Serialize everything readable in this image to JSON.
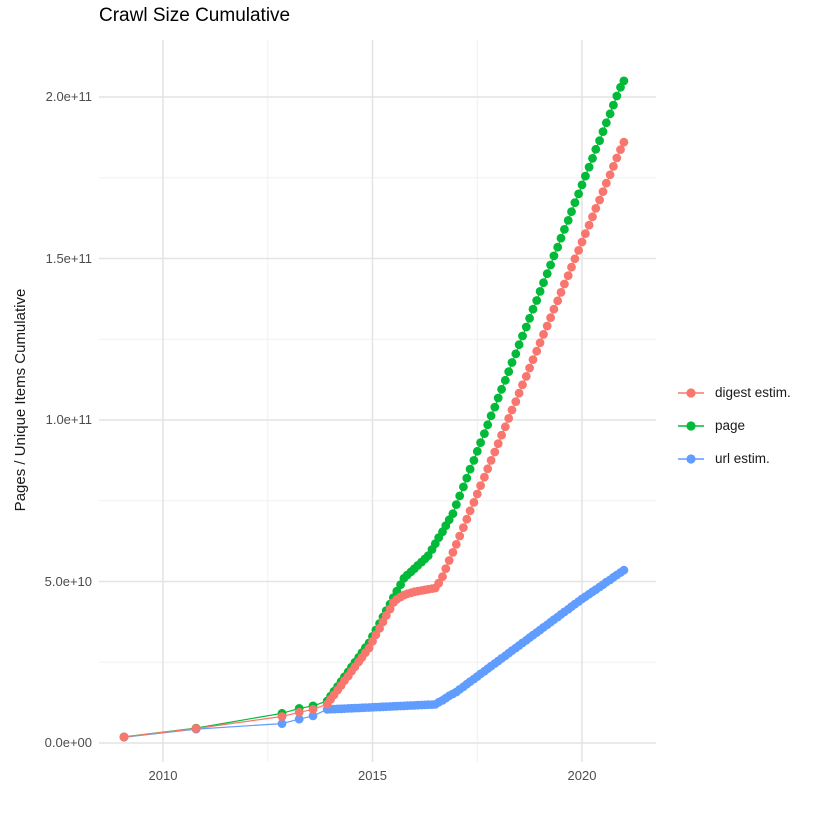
{
  "title": "Crawl Size Cumulative",
  "colors": {
    "background": "#ffffff",
    "grid_major": "#e4e4e4",
    "grid_minor": "#f0f0f0",
    "tick_label": "#4d4d4d",
    "text": "#000000",
    "digest_estim": "#F8766D",
    "page": "#00BA38",
    "url_estim": "#619CFF"
  },
  "chart_data": {
    "type": "line",
    "markers": true,
    "title": "Crawl Size Cumulative",
    "xlabel": "",
    "ylabel": "Pages / Unique Items Cumulative",
    "legend_position": "right",
    "grid": "major and minor, light gray on white",
    "value_unit": "values stored in billions (1e9); axis shows scientific notation",
    "x_range": [
      2008.5,
      2021.7
    ],
    "y_range_e9": [
      -6,
      217
    ],
    "x_ticks": [
      2010,
      2015,
      2020
    ],
    "x_tick_labels": [
      "2010",
      "2015",
      "2020"
    ],
    "x_minor_ticks": [
      2012.5,
      2017.5
    ],
    "y_tick_values_e9": [
      0,
      50,
      100,
      150,
      200
    ],
    "y_tick_labels": [
      "0.0e+00",
      "5.0e+10",
      "1.0e+11",
      "1.5e+11",
      "2.0e+11"
    ],
    "y_minor_tick_values_e9": [
      25,
      75,
      125,
      175
    ],
    "series": [
      {
        "name": "digest estim.",
        "color": "#F8766D",
        "points": [
          [
            2009.07,
            1.9
          ],
          [
            2010.79,
            4.5
          ],
          [
            2012.84,
            8.2
          ],
          [
            2013.25,
            9.5
          ],
          [
            2013.58,
            10.4
          ],
          [
            2013.92,
            12
          ],
          [
            2014,
            13.5
          ],
          [
            2014.08,
            14.9
          ],
          [
            2014.17,
            16.4
          ],
          [
            2014.25,
            17.8
          ],
          [
            2014.33,
            19.3
          ],
          [
            2014.42,
            20.7
          ],
          [
            2014.5,
            22.2
          ],
          [
            2014.58,
            23.6
          ],
          [
            2014.67,
            25.1
          ],
          [
            2014.75,
            26.5
          ],
          [
            2014.83,
            28
          ],
          [
            2014.92,
            29.4
          ],
          [
            2015,
            31.5
          ],
          [
            2015.08,
            33.5
          ],
          [
            2015.17,
            35.5
          ],
          [
            2015.25,
            37.5
          ],
          [
            2015.33,
            39.5
          ],
          [
            2015.42,
            41.5
          ],
          [
            2015.5,
            43.5
          ],
          [
            2015.58,
            44.5
          ],
          [
            2015.67,
            45.2
          ],
          [
            2015.75,
            45.8
          ],
          [
            2015.83,
            46.2
          ],
          [
            2015.92,
            46.5
          ],
          [
            2016,
            46.8
          ],
          [
            2016.08,
            47
          ],
          [
            2016.17,
            47.2
          ],
          [
            2016.25,
            47.4
          ],
          [
            2016.33,
            47.6
          ],
          [
            2016.42,
            47.8
          ],
          [
            2016.5,
            48
          ],
          [
            2016.58,
            49.5
          ],
          [
            2016.67,
            51.5
          ],
          [
            2016.75,
            54
          ],
          [
            2016.83,
            56.5
          ],
          [
            2016.92,
            59
          ],
          [
            2017,
            61.5
          ],
          [
            2017.08,
            64.1
          ],
          [
            2017.17,
            66.7
          ],
          [
            2017.25,
            69.3
          ],
          [
            2017.33,
            71.9
          ],
          [
            2017.42,
            74.5
          ],
          [
            2017.5,
            77.1
          ],
          [
            2017.58,
            79.7
          ],
          [
            2017.67,
            82.3
          ],
          [
            2017.75,
            84.9
          ],
          [
            2017.83,
            87.5
          ],
          [
            2017.92,
            90.1
          ],
          [
            2018,
            92.7
          ],
          [
            2018.08,
            95.3
          ],
          [
            2018.17,
            97.9
          ],
          [
            2018.25,
            100.5
          ],
          [
            2018.33,
            103.1
          ],
          [
            2018.42,
            105.7
          ],
          [
            2018.5,
            108.3
          ],
          [
            2018.58,
            110.9
          ],
          [
            2018.67,
            113.5
          ],
          [
            2018.75,
            116.1
          ],
          [
            2018.83,
            118.7
          ],
          [
            2018.92,
            121.3
          ],
          [
            2019,
            123.9
          ],
          [
            2019.08,
            126.5
          ],
          [
            2019.17,
            129.1
          ],
          [
            2019.25,
            131.7
          ],
          [
            2019.33,
            134.3
          ],
          [
            2019.42,
            136.9
          ],
          [
            2019.5,
            139.5
          ],
          [
            2019.58,
            142.1
          ],
          [
            2019.67,
            144.7
          ],
          [
            2019.75,
            147.3
          ],
          [
            2019.83,
            149.9
          ],
          [
            2019.92,
            152.5
          ],
          [
            2020,
            155.1
          ],
          [
            2020.08,
            157.7
          ],
          [
            2020.17,
            160.3
          ],
          [
            2020.25,
            162.9
          ],
          [
            2020.33,
            165.5
          ],
          [
            2020.42,
            168.1
          ],
          [
            2020.5,
            170.7
          ],
          [
            2020.58,
            173.3
          ],
          [
            2020.67,
            175.9
          ],
          [
            2020.75,
            178.5
          ],
          [
            2020.83,
            181.1
          ],
          [
            2020.92,
            183.7
          ],
          [
            2021,
            186
          ]
        ]
      },
      {
        "name": "page",
        "color": "#00BA38",
        "points": [
          [
            2009.07,
            1.9
          ],
          [
            2010.79,
            4.6
          ],
          [
            2012.84,
            9.2
          ],
          [
            2013.25,
            10.7
          ],
          [
            2013.58,
            11.5
          ],
          [
            2013.92,
            13
          ],
          [
            2014,
            14.5
          ],
          [
            2014.08,
            16
          ],
          [
            2014.17,
            17.5
          ],
          [
            2014.25,
            19
          ],
          [
            2014.33,
            20.5
          ],
          [
            2014.42,
            22
          ],
          [
            2014.5,
            23.5
          ],
          [
            2014.58,
            25
          ],
          [
            2014.67,
            26.5
          ],
          [
            2014.75,
            28
          ],
          [
            2014.83,
            29.5
          ],
          [
            2014.92,
            31
          ],
          [
            2015,
            33
          ],
          [
            2015.08,
            35
          ],
          [
            2015.17,
            37
          ],
          [
            2015.25,
            39
          ],
          [
            2015.33,
            41
          ],
          [
            2015.42,
            43
          ],
          [
            2015.5,
            45
          ],
          [
            2015.58,
            47
          ],
          [
            2015.67,
            49
          ],
          [
            2015.75,
            51
          ],
          [
            2015.83,
            52
          ],
          [
            2015.92,
            53
          ],
          [
            2016,
            54
          ],
          [
            2016.08,
            55
          ],
          [
            2016.17,
            56
          ],
          [
            2016.25,
            57
          ],
          [
            2016.33,
            58
          ],
          [
            2016.42,
            59.9
          ],
          [
            2016.5,
            61.7
          ],
          [
            2016.58,
            63.6
          ],
          [
            2016.67,
            65.4
          ],
          [
            2016.75,
            67.3
          ],
          [
            2016.83,
            69.1
          ],
          [
            2016.92,
            71
          ],
          [
            2017,
            73.8
          ],
          [
            2017.08,
            76.5
          ],
          [
            2017.17,
            79.3
          ],
          [
            2017.25,
            82
          ],
          [
            2017.33,
            84.8
          ],
          [
            2017.42,
            87.5
          ],
          [
            2017.5,
            90.3
          ],
          [
            2017.58,
            93
          ],
          [
            2017.67,
            95.8
          ],
          [
            2017.75,
            98.5
          ],
          [
            2017.83,
            101.3
          ],
          [
            2017.92,
            104
          ],
          [
            2018,
            106.8
          ],
          [
            2018.08,
            109.5
          ],
          [
            2018.17,
            112.3
          ],
          [
            2018.25,
            115
          ],
          [
            2018.33,
            117.8
          ],
          [
            2018.42,
            120.5
          ],
          [
            2018.5,
            123.3
          ],
          [
            2018.58,
            126
          ],
          [
            2018.67,
            128.8
          ],
          [
            2018.75,
            131.5
          ],
          [
            2018.83,
            134.3
          ],
          [
            2018.92,
            137
          ],
          [
            2019,
            139.8
          ],
          [
            2019.08,
            142.5
          ],
          [
            2019.17,
            145.3
          ],
          [
            2019.25,
            148
          ],
          [
            2019.33,
            150.8
          ],
          [
            2019.42,
            153.5
          ],
          [
            2019.5,
            156.3
          ],
          [
            2019.58,
            159
          ],
          [
            2019.67,
            161.8
          ],
          [
            2019.75,
            164.5
          ],
          [
            2019.83,
            167.3
          ],
          [
            2019.92,
            170
          ],
          [
            2020,
            172.8
          ],
          [
            2020.08,
            175.5
          ],
          [
            2020.17,
            178.3
          ],
          [
            2020.25,
            181
          ],
          [
            2020.33,
            183.8
          ],
          [
            2020.42,
            186.5
          ],
          [
            2020.5,
            189.3
          ],
          [
            2020.58,
            192
          ],
          [
            2020.67,
            194.8
          ],
          [
            2020.75,
            197.5
          ],
          [
            2020.83,
            200.3
          ],
          [
            2020.92,
            203
          ],
          [
            2021,
            205
          ]
        ]
      },
      {
        "name": "url estim.",
        "color": "#619CFF",
        "points": [
          [
            2009.07,
            1.8
          ],
          [
            2010.79,
            4.3
          ],
          [
            2012.84,
            6
          ],
          [
            2013.25,
            7.4
          ],
          [
            2013.58,
            8.4
          ],
          [
            2013.92,
            10.4
          ],
          [
            2014,
            10.45
          ],
          [
            2014.08,
            10.5
          ],
          [
            2014.17,
            10.55
          ],
          [
            2014.25,
            10.6
          ],
          [
            2014.33,
            10.65
          ],
          [
            2014.42,
            10.7
          ],
          [
            2014.5,
            10.75
          ],
          [
            2014.58,
            10.8
          ],
          [
            2014.67,
            10.85
          ],
          [
            2014.75,
            10.9
          ],
          [
            2014.83,
            10.95
          ],
          [
            2014.92,
            11
          ],
          [
            2015,
            11.05
          ],
          [
            2015.08,
            11.1
          ],
          [
            2015.17,
            11.15
          ],
          [
            2015.25,
            11.2
          ],
          [
            2015.33,
            11.25
          ],
          [
            2015.42,
            11.3
          ],
          [
            2015.5,
            11.35
          ],
          [
            2015.58,
            11.4
          ],
          [
            2015.67,
            11.45
          ],
          [
            2015.75,
            11.5
          ],
          [
            2015.83,
            11.55
          ],
          [
            2015.92,
            11.6
          ],
          [
            2016,
            11.65
          ],
          [
            2016.08,
            11.7
          ],
          [
            2016.17,
            11.75
          ],
          [
            2016.25,
            11.8
          ],
          [
            2016.33,
            11.85
          ],
          [
            2016.42,
            11.9
          ],
          [
            2016.5,
            11.95
          ],
          [
            2016.58,
            12.6
          ],
          [
            2016.67,
            13.2
          ],
          [
            2016.75,
            13.9
          ],
          [
            2016.83,
            14.6
          ],
          [
            2016.92,
            15.2
          ],
          [
            2017,
            15.8
          ],
          [
            2017.08,
            16.6
          ],
          [
            2017.17,
            17.4
          ],
          [
            2017.25,
            18.2
          ],
          [
            2017.33,
            19
          ],
          [
            2017.42,
            19.8
          ],
          [
            2017.5,
            20.6
          ],
          [
            2017.58,
            21.4
          ],
          [
            2017.67,
            22.2
          ],
          [
            2017.75,
            23
          ],
          [
            2017.83,
            23.8
          ],
          [
            2017.92,
            24.6
          ],
          [
            2018,
            25.4
          ],
          [
            2018.08,
            26.2
          ],
          [
            2018.17,
            27
          ],
          [
            2018.25,
            27.8
          ],
          [
            2018.33,
            28.6
          ],
          [
            2018.42,
            29.4
          ],
          [
            2018.5,
            30.2
          ],
          [
            2018.58,
            31
          ],
          [
            2018.67,
            31.8
          ],
          [
            2018.75,
            32.6
          ],
          [
            2018.83,
            33.4
          ],
          [
            2018.92,
            34.2
          ],
          [
            2019,
            35
          ],
          [
            2019.08,
            35.8
          ],
          [
            2019.17,
            36.6
          ],
          [
            2019.25,
            37.4
          ],
          [
            2019.33,
            38.2
          ],
          [
            2019.42,
            39
          ],
          [
            2019.5,
            39.8
          ],
          [
            2019.58,
            40.6
          ],
          [
            2019.67,
            41.4
          ],
          [
            2019.75,
            42.2
          ],
          [
            2019.83,
            43
          ],
          [
            2019.92,
            43.8
          ],
          [
            2020,
            44.6
          ],
          [
            2020.08,
            45.3
          ],
          [
            2020.17,
            46.1
          ],
          [
            2020.25,
            46.8
          ],
          [
            2020.33,
            47.5
          ],
          [
            2020.42,
            48.3
          ],
          [
            2020.5,
            49
          ],
          [
            2020.58,
            49.8
          ],
          [
            2020.67,
            50.5
          ],
          [
            2020.75,
            51.3
          ],
          [
            2020.83,
            52
          ],
          [
            2020.92,
            52.8
          ],
          [
            2021,
            53.5
          ]
        ]
      }
    ]
  }
}
